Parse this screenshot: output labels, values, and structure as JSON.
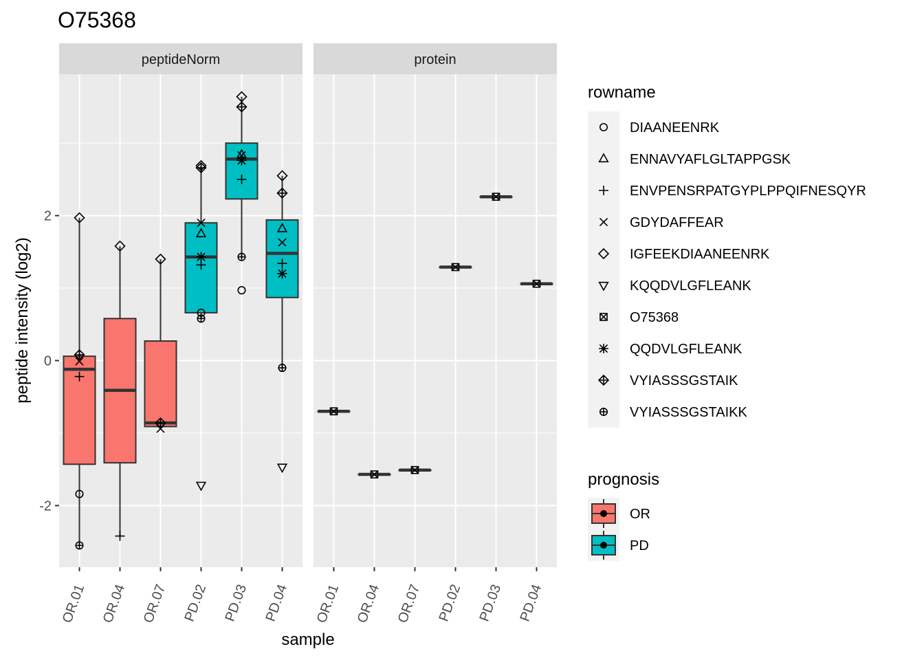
{
  "chart_data": {
    "type": "box",
    "title": "O75368",
    "xlabel": "sample",
    "ylabel": "peptide intensity (log2)",
    "ylim": [
      -2.85,
      3.95
    ],
    "y_ticks": [
      -2,
      0,
      2
    ],
    "y_tick_labels": [
      "-2",
      "0",
      "2"
    ],
    "grid": true,
    "categories": [
      "OR.01",
      "OR.04",
      "OR.07",
      "PD.02",
      "PD.03",
      "PD.04"
    ],
    "category_group": [
      "OR",
      "OR",
      "OR",
      "PD",
      "PD",
      "PD"
    ],
    "facets": [
      {
        "label": "peptideNorm",
        "boxes": [
          {
            "q1": -1.43,
            "median": -0.12,
            "q3": 0.06,
            "whisker_low": -2.55,
            "whisker_high": 1.97
          },
          {
            "q1": -1.41,
            "median": -0.41,
            "q3": 0.58,
            "whisker_low": -2.42,
            "whisker_high": 1.58
          },
          {
            "q1": -0.91,
            "median": -0.86,
            "q3": 0.27,
            "whisker_low": -0.94,
            "whisker_high": 1.4
          },
          {
            "q1": 0.66,
            "median": 1.43,
            "q3": 1.9,
            "whisker_low": 0.58,
            "whisker_high": 2.69
          },
          {
            "q1": 2.23,
            "median": 2.78,
            "q3": 3.0,
            "whisker_low": 1.43,
            "whisker_high": 3.64
          },
          {
            "q1": 0.87,
            "median": 1.48,
            "q3": 1.94,
            "whisker_low": -0.1,
            "whisker_high": 2.55
          }
        ],
        "points": [
          {
            "x": "OR.01",
            "shape": "circle",
            "y": -1.84
          },
          {
            "x": "OR.01",
            "shape": "plus",
            "y": -0.22
          },
          {
            "x": "OR.01",
            "shape": "cross",
            "y": -0.01
          },
          {
            "x": "OR.01",
            "shape": "diamond",
            "y": 1.97
          },
          {
            "x": "OR.01",
            "shape": "diamond-plus",
            "y": 0.08
          },
          {
            "x": "OR.01",
            "shape": "circle-plus",
            "y": -2.55
          },
          {
            "x": "OR.04",
            "shape": "plus",
            "y": -2.42
          },
          {
            "x": "OR.04",
            "shape": "diamond",
            "y": 1.58
          },
          {
            "x": "OR.07",
            "shape": "cross",
            "y": -0.94
          },
          {
            "x": "OR.07",
            "shape": "diamond",
            "y": 1.4
          },
          {
            "x": "OR.07",
            "shape": "diamond-plus",
            "y": -0.86
          },
          {
            "x": "PD.02",
            "shape": "circle",
            "y": 0.66
          },
          {
            "x": "PD.02",
            "shape": "triangle",
            "y": 1.75
          },
          {
            "x": "PD.02",
            "shape": "plus",
            "y": 1.32
          },
          {
            "x": "PD.02",
            "shape": "cross",
            "y": 1.9
          },
          {
            "x": "PD.02",
            "shape": "diamond",
            "y": 2.69
          },
          {
            "x": "PD.02",
            "shape": "triangle-down",
            "y": -1.72
          },
          {
            "x": "PD.02",
            "shape": "asterisk",
            "y": 1.43
          },
          {
            "x": "PD.02",
            "shape": "diamond-plus",
            "y": 2.66
          },
          {
            "x": "PD.02",
            "shape": "circle-plus",
            "y": 0.58
          },
          {
            "x": "PD.03",
            "shape": "circle",
            "y": 0.97
          },
          {
            "x": "PD.03",
            "shape": "triangle",
            "y": 2.84
          },
          {
            "x": "PD.03",
            "shape": "plus",
            "y": 2.5
          },
          {
            "x": "PD.03",
            "shape": "cross",
            "y": 2.83
          },
          {
            "x": "PD.03",
            "shape": "diamond",
            "y": 3.64
          },
          {
            "x": "PD.03",
            "shape": "asterisk",
            "y": 2.76
          },
          {
            "x": "PD.03",
            "shape": "diamond-plus",
            "y": 3.5
          },
          {
            "x": "PD.03",
            "shape": "circle-plus",
            "y": 1.43
          },
          {
            "x": "PD.04",
            "shape": "triangle",
            "y": 1.82
          },
          {
            "x": "PD.04",
            "shape": "plus",
            "y": 1.34
          },
          {
            "x": "PD.04",
            "shape": "cross",
            "y": 1.63
          },
          {
            "x": "PD.04",
            "shape": "diamond",
            "y": 2.55
          },
          {
            "x": "PD.04",
            "shape": "triangle-down",
            "y": -1.47
          },
          {
            "x": "PD.04",
            "shape": "asterisk",
            "y": 1.2
          },
          {
            "x": "PD.04",
            "shape": "diamond-plus",
            "y": 2.31
          },
          {
            "x": "PD.04",
            "shape": "circle-plus",
            "y": -0.1
          }
        ]
      },
      {
        "label": "protein",
        "boxes": [
          {
            "q1": -0.7,
            "median": -0.7,
            "q3": -0.7,
            "whisker_low": -0.7,
            "whisker_high": -0.7
          },
          {
            "q1": -1.57,
            "median": -1.57,
            "q3": -1.57,
            "whisker_low": -1.57,
            "whisker_high": -1.57
          },
          {
            "q1": -1.51,
            "median": -1.51,
            "q3": -1.51,
            "whisker_low": -1.51,
            "whisker_high": -1.51
          },
          {
            "q1": 1.29,
            "median": 1.29,
            "q3": 1.29,
            "whisker_low": 1.29,
            "whisker_high": 1.29
          },
          {
            "q1": 2.26,
            "median": 2.26,
            "q3": 2.26,
            "whisker_low": 2.26,
            "whisker_high": 2.26
          },
          {
            "q1": 1.06,
            "median": 1.06,
            "q3": 1.06,
            "whisker_low": 1.06,
            "whisker_high": 1.06
          }
        ],
        "points": [
          {
            "x": "OR.01",
            "shape": "square-cross",
            "y": -0.7
          },
          {
            "x": "OR.04",
            "shape": "square-cross",
            "y": -1.57
          },
          {
            "x": "OR.07",
            "shape": "square-cross",
            "y": -1.51
          },
          {
            "x": "PD.02",
            "shape": "square-cross",
            "y": 1.29
          },
          {
            "x": "PD.03",
            "shape": "square-cross",
            "y": 2.26
          },
          {
            "x": "PD.04",
            "shape": "square-cross",
            "y": 1.06
          }
        ]
      }
    ],
    "legends": [
      {
        "title": "rowname",
        "items": [
          {
            "label": "DIAANEENRK",
            "shape": "circle"
          },
          {
            "label": "ENNAVYAFLGLTAPPGSK",
            "shape": "triangle"
          },
          {
            "label": "ENVPENSRPATGYPLPPQIFNESQYR",
            "shape": "plus"
          },
          {
            "label": "GDYDAFFEAR",
            "shape": "cross"
          },
          {
            "label": "IGFEEKDIAANEENRK",
            "shape": "diamond"
          },
          {
            "label": "KQQDVLGFLEANK",
            "shape": "triangle-down"
          },
          {
            "label": "O75368",
            "shape": "square-cross"
          },
          {
            "label": "QQDVLGFLEANK",
            "shape": "asterisk"
          },
          {
            "label": "VYIASSSGSTAIK",
            "shape": "diamond-plus"
          },
          {
            "label": "VYIASSSGSTAIKK",
            "shape": "circle-plus"
          }
        ]
      },
      {
        "title": "prognosis",
        "items": [
          {
            "label": "OR",
            "color": "#F8766D"
          },
          {
            "label": "PD",
            "color": "#00BFC4"
          }
        ]
      }
    ],
    "legend_position": "right",
    "colors": {
      "OR": "#F8766D",
      "PD": "#00BFC4",
      "panel": "#EBEBEB",
      "strip": "#D9D9D9"
    }
  }
}
